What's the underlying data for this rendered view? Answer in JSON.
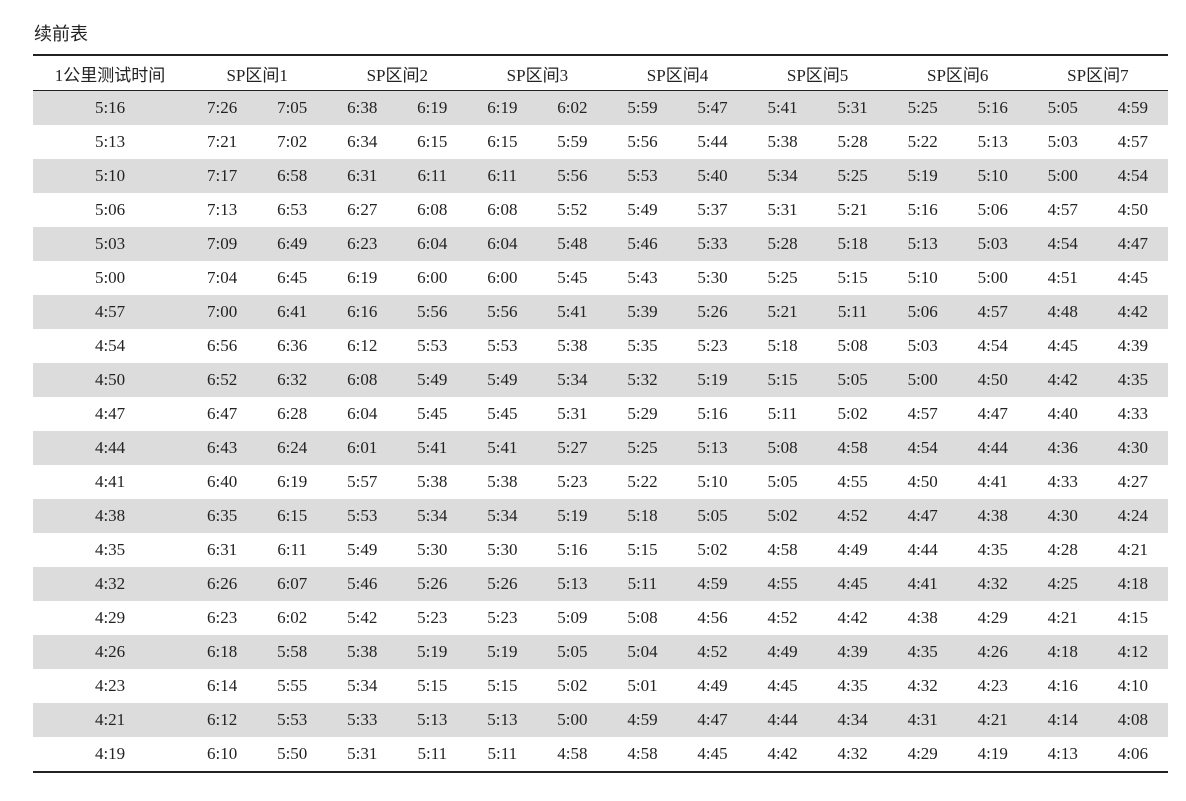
{
  "caption": "续前表",
  "table": {
    "header": [
      "1公里测试时间",
      "SP区间1",
      "SP区间2",
      "SP区间3",
      "SP区间4",
      "SP区间5",
      "SP区间6",
      "SP区间7"
    ],
    "rows": [
      [
        "5:16",
        "7:26",
        "7:05",
        "6:38",
        "6:19",
        "6:19",
        "6:02",
        "5:59",
        "5:47",
        "5:41",
        "5:31",
        "5:25",
        "5:16",
        "5:05",
        "4:59"
      ],
      [
        "5:13",
        "7:21",
        "7:02",
        "6:34",
        "6:15",
        "6:15",
        "5:59",
        "5:56",
        "5:44",
        "5:38",
        "5:28",
        "5:22",
        "5:13",
        "5:03",
        "4:57"
      ],
      [
        "5:10",
        "7:17",
        "6:58",
        "6:31",
        "6:11",
        "6:11",
        "5:56",
        "5:53",
        "5:40",
        "5:34",
        "5:25",
        "5:19",
        "5:10",
        "5:00",
        "4:54"
      ],
      [
        "5:06",
        "7:13",
        "6:53",
        "6:27",
        "6:08",
        "6:08",
        "5:52",
        "5:49",
        "5:37",
        "5:31",
        "5:21",
        "5:16",
        "5:06",
        "4:57",
        "4:50"
      ],
      [
        "5:03",
        "7:09",
        "6:49",
        "6:23",
        "6:04",
        "6:04",
        "5:48",
        "5:46",
        "5:33",
        "5:28",
        "5:18",
        "5:13",
        "5:03",
        "4:54",
        "4:47"
      ],
      [
        "5:00",
        "7:04",
        "6:45",
        "6:19",
        "6:00",
        "6:00",
        "5:45",
        "5:43",
        "5:30",
        "5:25",
        "5:15",
        "5:10",
        "5:00",
        "4:51",
        "4:45"
      ],
      [
        "4:57",
        "7:00",
        "6:41",
        "6:16",
        "5:56",
        "5:56",
        "5:41",
        "5:39",
        "5:26",
        "5:21",
        "5:11",
        "5:06",
        "4:57",
        "4:48",
        "4:42"
      ],
      [
        "4:54",
        "6:56",
        "6:36",
        "6:12",
        "5:53",
        "5:53",
        "5:38",
        "5:35",
        "5:23",
        "5:18",
        "5:08",
        "5:03",
        "4:54",
        "4:45",
        "4:39"
      ],
      [
        "4:50",
        "6:52",
        "6:32",
        "6:08",
        "5:49",
        "5:49",
        "5:34",
        "5:32",
        "5:19",
        "5:15",
        "5:05",
        "5:00",
        "4:50",
        "4:42",
        "4:35"
      ],
      [
        "4:47",
        "6:47",
        "6:28",
        "6:04",
        "5:45",
        "5:45",
        "5:31",
        "5:29",
        "5:16",
        "5:11",
        "5:02",
        "4:57",
        "4:47",
        "4:40",
        "4:33"
      ],
      [
        "4:44",
        "6:43",
        "6:24",
        "6:01",
        "5:41",
        "5:41",
        "5:27",
        "5:25",
        "5:13",
        "5:08",
        "4:58",
        "4:54",
        "4:44",
        "4:36",
        "4:30"
      ],
      [
        "4:41",
        "6:40",
        "6:19",
        "5:57",
        "5:38",
        "5:38",
        "5:23",
        "5:22",
        "5:10",
        "5:05",
        "4:55",
        "4:50",
        "4:41",
        "4:33",
        "4:27"
      ],
      [
        "4:38",
        "6:35",
        "6:15",
        "5:53",
        "5:34",
        "5:34",
        "5:19",
        "5:18",
        "5:05",
        "5:02",
        "4:52",
        "4:47",
        "4:38",
        "4:30",
        "4:24"
      ],
      [
        "4:35",
        "6:31",
        "6:11",
        "5:49",
        "5:30",
        "5:30",
        "5:16",
        "5:15",
        "5:02",
        "4:58",
        "4:49",
        "4:44",
        "4:35",
        "4:28",
        "4:21"
      ],
      [
        "4:32",
        "6:26",
        "6:07",
        "5:46",
        "5:26",
        "5:26",
        "5:13",
        "5:11",
        "4:59",
        "4:55",
        "4:45",
        "4:41",
        "4:32",
        "4:25",
        "4:18"
      ],
      [
        "4:29",
        "6:23",
        "6:02",
        "5:42",
        "5:23",
        "5:23",
        "5:09",
        "5:08",
        "4:56",
        "4:52",
        "4:42",
        "4:38",
        "4:29",
        "4:21",
        "4:15"
      ],
      [
        "4:26",
        "6:18",
        "5:58",
        "5:38",
        "5:19",
        "5:19",
        "5:05",
        "5:04",
        "4:52",
        "4:49",
        "4:39",
        "4:35",
        "4:26",
        "4:18",
        "4:12"
      ],
      [
        "4:23",
        "6:14",
        "5:55",
        "5:34",
        "5:15",
        "5:15",
        "5:02",
        "5:01",
        "4:49",
        "4:45",
        "4:35",
        "4:32",
        "4:23",
        "4:16",
        "4:10"
      ],
      [
        "4:21",
        "6:12",
        "5:53",
        "5:33",
        "5:13",
        "5:13",
        "5:00",
        "4:59",
        "4:47",
        "4:44",
        "4:34",
        "4:31",
        "4:21",
        "4:14",
        "4:08"
      ],
      [
        "4:19",
        "6:10",
        "5:50",
        "5:31",
        "5:11",
        "5:11",
        "4:58",
        "4:58",
        "4:45",
        "4:42",
        "4:32",
        "4:29",
        "4:19",
        "4:13",
        "4:06"
      ]
    ]
  }
}
